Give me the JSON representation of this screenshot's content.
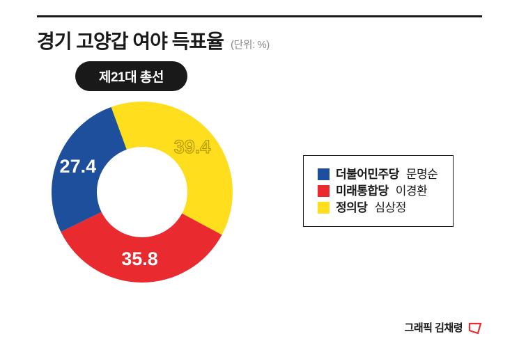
{
  "title": "경기 고양갑 여야 득표율",
  "unit": "(단위: %)",
  "pill": "제21대 총선",
  "donut": {
    "type": "donut",
    "ring_width": 65,
    "outer_radius": 130,
    "background_color": "#ffffff",
    "start_angle_deg": 250,
    "slices": [
      {
        "label": "39.4",
        "value": 39.4,
        "color": "#ffde1d",
        "label_color": "#f1dc15",
        "label_stroke": "#b08d00"
      },
      {
        "label": "35.8",
        "value": 35.8,
        "color": "#e92a2f",
        "label_color": "#ffffff"
      },
      {
        "label": "27.4",
        "value": 27.4,
        "color": "#1d4f9c",
        "label_color": "#ffffff"
      }
    ],
    "label_fontsize": 27,
    "label_fontweight": 800
  },
  "legend": {
    "items": [
      {
        "party": "더불어민주당",
        "name": "문명순",
        "color": "#1d4f9c"
      },
      {
        "party": "미래통합당",
        "name": "이경환",
        "color": "#e92a2f"
      },
      {
        "party": "정의당",
        "name": "심상정",
        "color": "#ffde1d"
      }
    ]
  },
  "credit": {
    "text": "그래픽 김채령",
    "logo_color": "#e92a2f"
  }
}
